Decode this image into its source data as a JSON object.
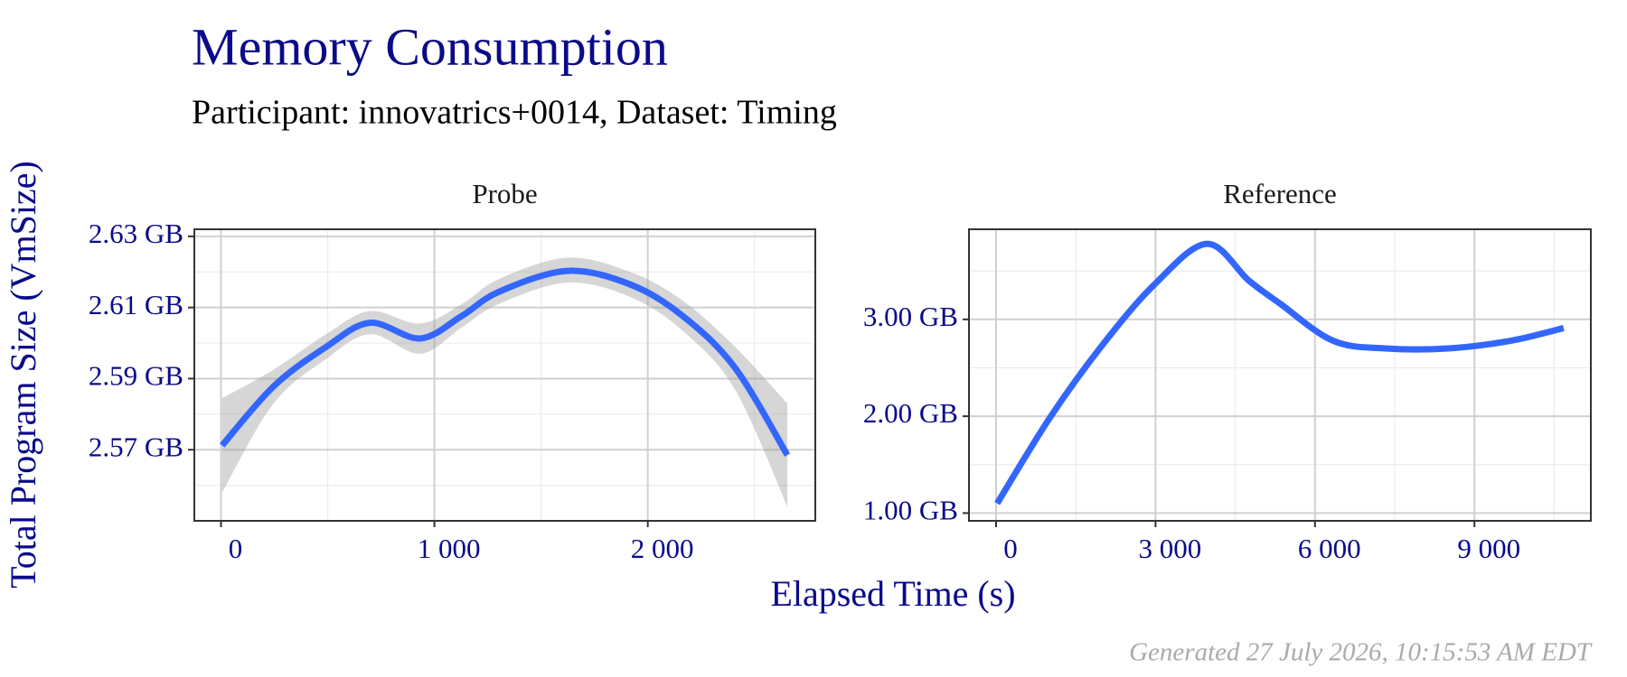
{
  "title": "Memory Consumption",
  "subtitle": "Participant: innovatrics+0014, Dataset: Timing",
  "xlabel": "Elapsed Time (s)",
  "ylabel": "Total Program Size (VmSize)",
  "caption": "Generated 27 July 2026, 10:15:53 AM EDT",
  "chart_data": [
    {
      "type": "line",
      "title": "Probe",
      "grid": true,
      "minor_grid": true,
      "band": true,
      "x": [
        5,
        246,
        492,
        698,
        934,
        1130,
        1302,
        1622,
        1917,
        2162,
        2408,
        2654
      ],
      "series": [
        {
          "color": "#3366ff",
          "values": [
            2.5712,
            2.5878,
            2.5989,
            2.6057,
            2.6013,
            2.6077,
            2.6144,
            2.6203,
            2.6165,
            2.6077,
            2.5931,
            2.5685
          ],
          "band_lower": [
            2.558,
            2.583,
            2.5955,
            2.6025,
            2.597,
            2.6045,
            2.611,
            2.617,
            2.613,
            2.6035,
            2.587,
            2.554
          ],
          "band_upper": [
            2.5845,
            2.5925,
            2.6025,
            2.609,
            2.6055,
            2.611,
            2.618,
            2.624,
            2.62,
            2.612,
            2.599,
            2.583
          ],
          "band_color": "#999999"
        }
      ],
      "xlim": [
        -125,
        2785
      ],
      "ylim": [
        2.55,
        2.632
      ],
      "xticks": [
        0,
        {
          "value": 1000,
          "label": "1 000"
        },
        {
          "value": 2000,
          "label": "2 000"
        }
      ],
      "yticks": [
        {
          "value": 2.57,
          "label": "2.57 GB"
        },
        {
          "value": 2.59,
          "label": "2.59 GB"
        },
        {
          "value": 2.61,
          "label": "2.61 GB"
        },
        {
          "value": 2.63,
          "label": "2.63 GB"
        }
      ]
    },
    {
      "type": "line",
      "title": "Reference",
      "grid": true,
      "minor_grid": true,
      "band": false,
      "x": [
        20,
        1007,
        1993,
        2980,
        3967,
        4756,
        5349,
        6336,
        7322,
        8507,
        9691,
        10678
      ],
      "series": [
        {
          "color": "#3366ff",
          "values": [
            1.1,
            1.98,
            2.73,
            3.36,
            3.78,
            3.4,
            3.16,
            2.78,
            2.7,
            2.7,
            2.78,
            2.91
          ]
        }
      ],
      "xlim": [
        -510,
        11190
      ],
      "ylim": [
        0.92,
        3.93
      ],
      "xticks": [
        0,
        {
          "value": 3000,
          "label": "3 000"
        },
        {
          "value": 6000,
          "label": "6 000"
        },
        {
          "value": 9000,
          "label": "9 000"
        }
      ],
      "yticks": [
        {
          "value": 1,
          "label": "1.00 GB"
        },
        {
          "value": 2,
          "label": "2.00 GB"
        },
        {
          "value": 3,
          "label": "3.00 GB"
        }
      ]
    }
  ]
}
